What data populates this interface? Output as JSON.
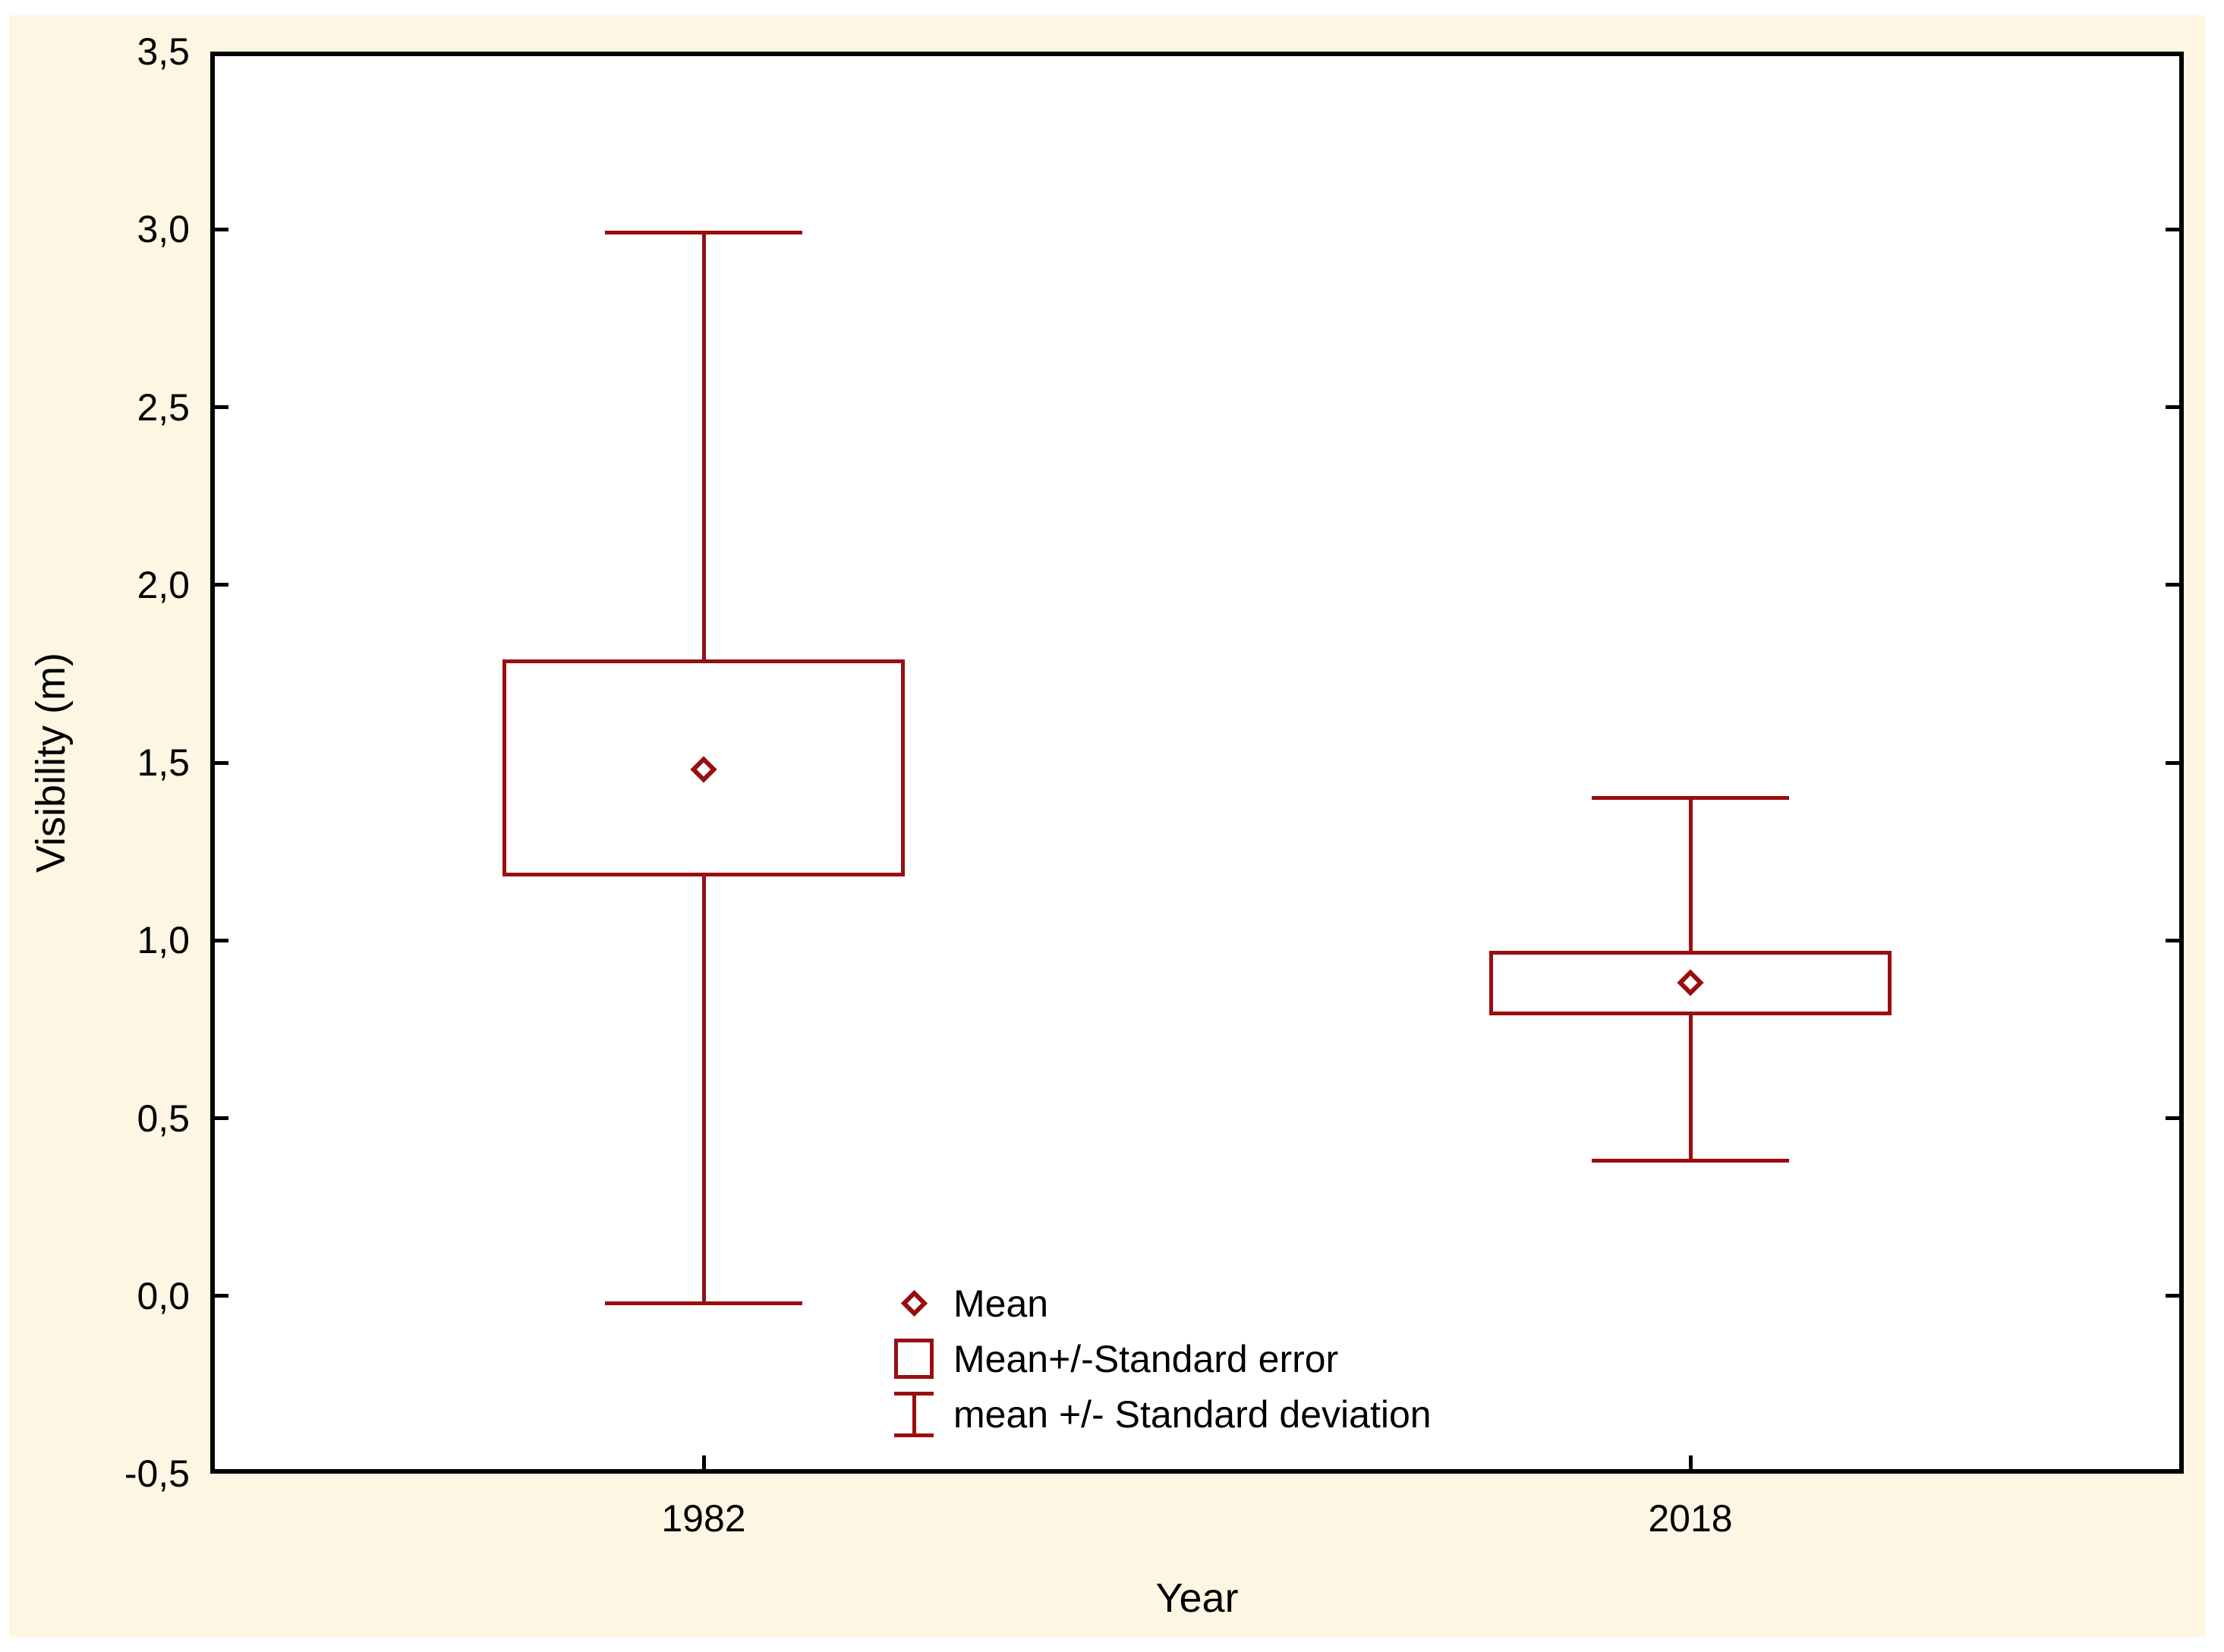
{
  "chart_data": {
    "type": "box-whisker-mean-se-sd",
    "title": "",
    "xlabel": "Year",
    "ylabel": "Visibility (m)",
    "ylim": [
      -0.5,
      3.5
    ],
    "y_ticks": [
      {
        "value": 3.5,
        "label": "3,5"
      },
      {
        "value": 3.0,
        "label": "3,0"
      },
      {
        "value": 2.5,
        "label": "2,5"
      },
      {
        "value": 2.0,
        "label": "2,0"
      },
      {
        "value": 1.5,
        "label": "1,5"
      },
      {
        "value": 1.0,
        "label": "1,0"
      },
      {
        "value": 0.5,
        "label": "0,5"
      },
      {
        "value": 0.0,
        "label": "0,0"
      },
      {
        "value": -0.5,
        "label": "-0,5"
      }
    ],
    "categories": [
      "1982",
      "2018"
    ],
    "series": [
      {
        "category": "1982",
        "mean": 1.48,
        "se_low": 1.18,
        "se_high": 1.79,
        "sd_low": -0.02,
        "sd_high": 2.99
      },
      {
        "category": "2018",
        "mean": 0.88,
        "se_low": 0.79,
        "se_high": 0.97,
        "sd_low": 0.38,
        "sd_high": 1.4
      }
    ],
    "legend": [
      {
        "marker": "diamond-icon",
        "label": "Mean"
      },
      {
        "marker": "box-icon",
        "label": "Mean+/-Standard error"
      },
      {
        "marker": "whisker-icon",
        "label": "mean +/- Standard deviation"
      }
    ],
    "colors": {
      "series": "#9a0e10",
      "frame": "#000000",
      "text": "#000000",
      "plot_bg": "#ffffff",
      "canvas_bg": "#fdf6e3",
      "page_bg": "#ffffff"
    },
    "layout_hints": {
      "grid": false,
      "legend_position": "inside-bottom-center",
      "ticks": "inward"
    }
  }
}
